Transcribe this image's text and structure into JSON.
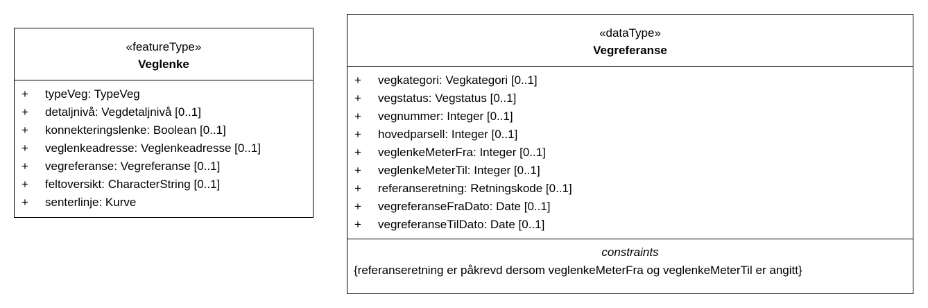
{
  "classes": [
    {
      "stereotype": "«featureType»",
      "name": "Veglenke",
      "attributes": [
        {
          "vis": "+",
          "text": "typeVeg: TypeVeg"
        },
        {
          "vis": "+",
          "text": "detaljnivå: Vegdetaljnivå [0..1]"
        },
        {
          "vis": "+",
          "text": "konnekteringslenke: Boolean [0..1]"
        },
        {
          "vis": "+",
          "text": "veglenkeadresse: Veglenkeadresse [0..1]"
        },
        {
          "vis": "+",
          "text": "vegreferanse: Vegreferanse [0..1]"
        },
        {
          "vis": "+",
          "text": "feltoversikt: CharacterString [0..1]"
        },
        {
          "vis": "+",
          "text": "senterlinje: Kurve"
        }
      ]
    },
    {
      "stereotype": "«dataType»",
      "name": "Vegreferanse",
      "attributes": [
        {
          "vis": "+",
          "text": "vegkategori: Vegkategori [0..1]"
        },
        {
          "vis": "+",
          "text": "vegstatus: Vegstatus [0..1]"
        },
        {
          "vis": "+",
          "text": "vegnummer: Integer [0..1]"
        },
        {
          "vis": "+",
          "text": "hovedparsell: Integer [0..1]"
        },
        {
          "vis": "+",
          "text": "veglenkeMeterFra: Integer [0..1]"
        },
        {
          "vis": "+",
          "text": "veglenkeMeterTil: Integer [0..1]"
        },
        {
          "vis": "+",
          "text": "referanseretning: Retningskode [0..1]"
        },
        {
          "vis": "+",
          "text": "vegreferanseFraDato: Date [0..1]"
        },
        {
          "vis": "+",
          "text": "vegreferanseTilDato: Date [0..1]"
        }
      ],
      "constraints": {
        "title": "constraints",
        "text": "{referanseretning er påkrevd dersom veglenkeMeterFra og veglenkeMeterTil er angitt}"
      }
    }
  ]
}
